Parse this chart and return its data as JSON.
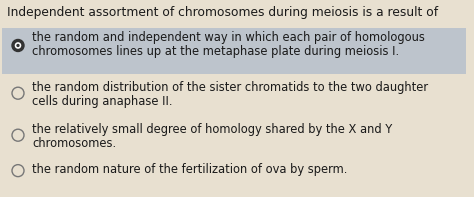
{
  "title": "Independent assortment of chromosomes during meiosis is a result of",
  "title_fontsize": 8.8,
  "bg_color": "#e8e0d0",
  "highlight_bg": "#bdc4cc",
  "options": [
    {
      "line1": "the random and independent way in which each pair of homologous",
      "line2": "chromosomes lines up at the metaphase plate during meiosis I.",
      "selected": true,
      "radio_filled": true
    },
    {
      "line1": "the random distribution of the sister chromatids to the two daughter",
      "line2": "cells during anaphase II.",
      "selected": false,
      "radio_filled": false
    },
    {
      "line1": "the relatively small degree of homology shared by the X and Y",
      "line2": "chromosomes.",
      "selected": false,
      "radio_filled": false
    },
    {
      "line1": "the random nature of the fertilization of ova by sperm.",
      "line2": "",
      "selected": false,
      "radio_filled": false
    }
  ],
  "option_fontsize": 8.3,
  "text_color": "#1a1a1a",
  "radio_color": "#777777",
  "radio_fill_color": "#333333",
  "radio_inner_color": "#ffffff",
  "figsize": [
    4.74,
    1.97
  ],
  "dpi": 100
}
